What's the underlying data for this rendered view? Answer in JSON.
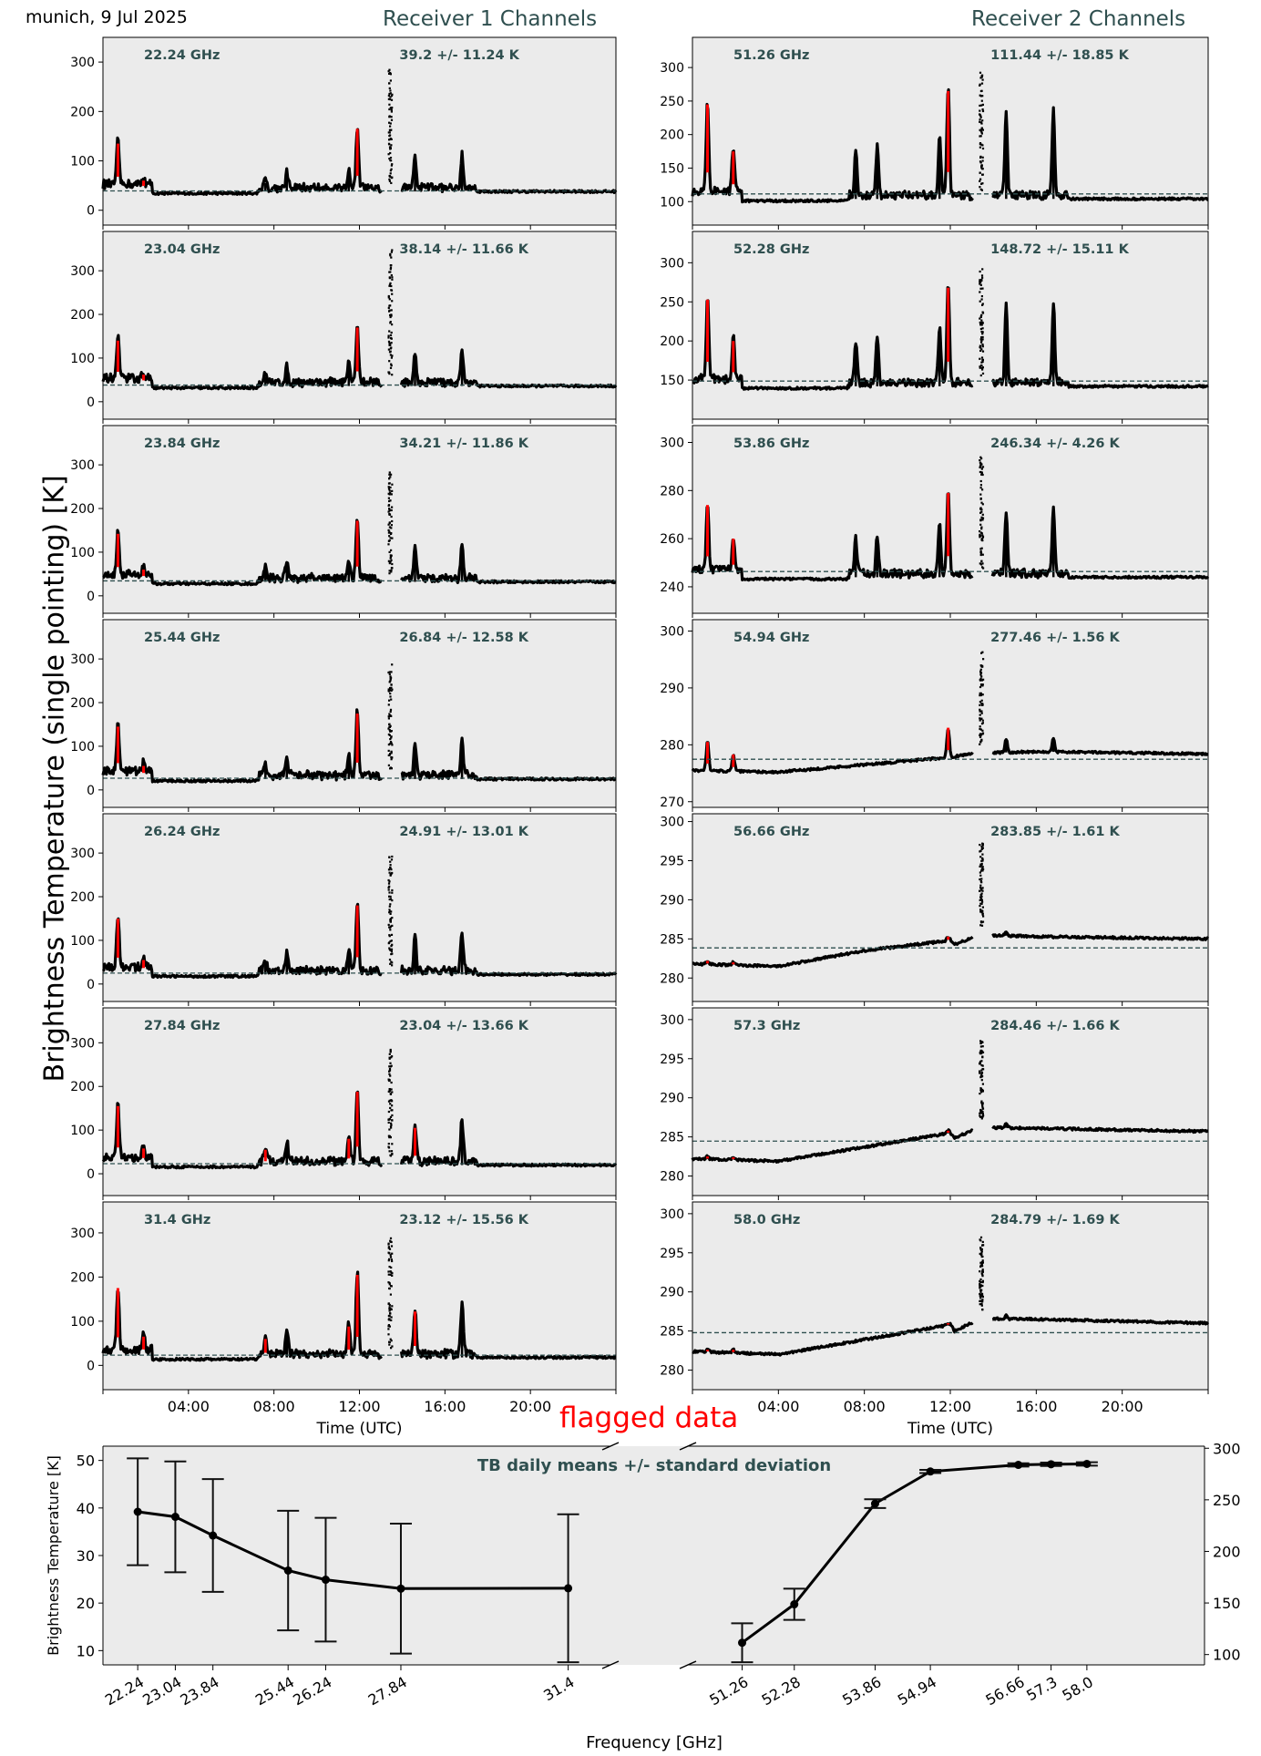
{
  "header": {
    "location_date": "munich, 9 Jul 2025",
    "receiver1_title": "Receiver 1 Channels",
    "receiver2_title": "Receiver 2 Channels",
    "shared_ylabel": "Brightness Temperature (single pointing) [K]",
    "flagged_label": "flagged data"
  },
  "colors": {
    "panel_bg": "#ebebeb",
    "annotation": "#2f4f4f",
    "data": "#000000",
    "flagged": "#ff0000",
    "mean_line": "#2f4f4f"
  },
  "chart_data": [
    {
      "type": "scatter",
      "title": "Receiver 1 Channels",
      "xlabel": "Time (UTC)",
      "ylabel": "Brightness Temperature (single pointing) [K]",
      "xlim": [
        "00:00",
        "24:00"
      ],
      "xticks": [
        "04:00",
        "08:00",
        "12:00",
        "16:00",
        "20:00"
      ],
      "panels": [
        {
          "freq_label": "22.24 GHz",
          "stats_label": "39.2 +/- 11.24 K",
          "mean": 39.2,
          "ylim": [
            -30,
            350
          ],
          "yticks": [
            0,
            100,
            200,
            300
          ],
          "baseline": 38,
          "peaks": [
            [
              0.7,
              135,
              "f"
            ],
            [
              1.9,
              60,
              "f"
            ],
            [
              7.6,
              55,
              "d"
            ],
            [
              8.6,
              68,
              "d"
            ],
            [
              11.5,
              75,
              "d"
            ],
            [
              11.9,
              165,
              "f"
            ],
            [
              13.4,
              290,
              "s"
            ],
            [
              14.6,
              100,
              "d"
            ],
            [
              16.8,
              108,
              "d"
            ]
          ]
        },
        {
          "freq_label": "23.04 GHz",
          "stats_label": "38.14 +/- 11.66 K",
          "mean": 38.14,
          "ylim": [
            -40,
            390
          ],
          "yticks": [
            0,
            100,
            200,
            300
          ],
          "baseline": 36,
          "peaks": [
            [
              0.7,
              140,
              "f"
            ],
            [
              1.9,
              62,
              "f"
            ],
            [
              7.6,
              56,
              "d"
            ],
            [
              8.6,
              70,
              "d"
            ],
            [
              11.5,
              78,
              "d"
            ],
            [
              11.9,
              170,
              "f"
            ],
            [
              13.4,
              355,
              "s"
            ],
            [
              14.6,
              102,
              "d"
            ],
            [
              16.8,
              110,
              "d"
            ]
          ]
        },
        {
          "freq_label": "23.84 GHz",
          "stats_label": "34.21 +/- 11.86 K",
          "mean": 34.21,
          "ylim": [
            -40,
            390
          ],
          "yticks": [
            0,
            100,
            200,
            300
          ],
          "baseline": 32,
          "peaks": [
            [
              0.7,
              142,
              "f"
            ],
            [
              1.9,
              60,
              "f"
            ],
            [
              7.6,
              56,
              "d"
            ],
            [
              8.6,
              70,
              "d"
            ],
            [
              11.5,
              76,
              "d"
            ],
            [
              11.9,
              172,
              "f"
            ],
            [
              13.4,
              290,
              "s"
            ],
            [
              14.6,
              100,
              "d"
            ],
            [
              16.8,
              110,
              "d"
            ]
          ]
        },
        {
          "freq_label": "25.44 GHz",
          "stats_label": "26.84 +/- 12.58 K",
          "mean": 26.84,
          "ylim": [
            -40,
            390
          ],
          "yticks": [
            0,
            100,
            200,
            300
          ],
          "baseline": 25,
          "peaks": [
            [
              0.7,
              145,
              "f"
            ],
            [
              1.9,
              55,
              "f"
            ],
            [
              7.6,
              50,
              "d"
            ],
            [
              8.6,
              68,
              "d"
            ],
            [
              11.5,
              72,
              "d"
            ],
            [
              11.9,
              175,
              "f"
            ],
            [
              13.4,
              290,
              "s"
            ],
            [
              14.6,
              100,
              "d"
            ],
            [
              16.8,
              108,
              "d"
            ]
          ]
        },
        {
          "freq_label": "26.24 GHz",
          "stats_label": "24.91 +/- 13.01 K",
          "mean": 24.91,
          "ylim": [
            -40,
            390
          ],
          "yticks": [
            0,
            100,
            200,
            300
          ],
          "baseline": 22,
          "peaks": [
            [
              0.7,
              150,
              "f"
            ],
            [
              1.9,
              55,
              "f"
            ],
            [
              7.6,
              50,
              "d"
            ],
            [
              8.6,
              66,
              "d"
            ],
            [
              11.5,
              75,
              "d"
            ],
            [
              11.9,
              180,
              "f"
            ],
            [
              13.4,
              305,
              "s"
            ],
            [
              14.6,
              100,
              "d"
            ],
            [
              16.8,
              110,
              "d"
            ]
          ]
        },
        {
          "freq_label": "27.84 GHz",
          "stats_label": "23.04 +/- 13.66 K",
          "mean": 23.04,
          "ylim": [
            -50,
            380
          ],
          "yticks": [
            0,
            100,
            200,
            300
          ],
          "baseline": 20,
          "peaks": [
            [
              0.7,
              155,
              "f"
            ],
            [
              1.9,
              58,
              "f"
            ],
            [
              7.6,
              55,
              "f"
            ],
            [
              8.6,
              68,
              "d"
            ],
            [
              11.5,
              80,
              "f"
            ],
            [
              11.9,
              188,
              "f"
            ],
            [
              13.4,
              288,
              "s"
            ],
            [
              14.6,
              105,
              "f"
            ],
            [
              16.8,
              118,
              "d"
            ]
          ]
        },
        {
          "freq_label": "31.4 GHz",
          "stats_label": "23.12 +/- 15.56 K",
          "mean": 23.12,
          "ylim": [
            -55,
            370
          ],
          "yticks": [
            0,
            100,
            200,
            300
          ],
          "baseline": 18,
          "peaks": [
            [
              0.7,
              175,
              "f"
            ],
            [
              1.9,
              65,
              "f"
            ],
            [
              7.6,
              60,
              "f"
            ],
            [
              8.6,
              80,
              "d"
            ],
            [
              11.5,
              88,
              "f"
            ],
            [
              11.9,
              205,
              "f"
            ],
            [
              13.4,
              290,
              "s"
            ],
            [
              14.6,
              122,
              "f"
            ],
            [
              16.8,
              135,
              "d"
            ]
          ]
        }
      ]
    },
    {
      "type": "scatter",
      "title": "Receiver 2 Channels",
      "xlabel": "Time (UTC)",
      "xlim": [
        "00:00",
        "24:00"
      ],
      "xticks": [
        "04:00",
        "08:00",
        "12:00",
        "16:00",
        "20:00"
      ],
      "panels": [
        {
          "freq_label": "51.26 GHz",
          "stats_label": "111.44 +/- 18.85 K",
          "mean": 111.44,
          "ylim": [
            65,
            345
          ],
          "yticks": [
            100,
            150,
            200,
            250,
            300
          ],
          "baseline": 104,
          "peaks": [
            [
              0.7,
              245,
              "f"
            ],
            [
              1.9,
              175,
              "f"
            ],
            [
              7.6,
              170,
              "d"
            ],
            [
              8.6,
              182,
              "d"
            ],
            [
              11.5,
              195,
              "d"
            ],
            [
              11.9,
              265,
              "f"
            ],
            [
              13.4,
              295,
              "s"
            ],
            [
              14.6,
              228,
              "d"
            ],
            [
              16.8,
              232,
              "d"
            ]
          ]
        },
        {
          "freq_label": "52.28 GHz",
          "stats_label": "148.72 +/- 15.11 K",
          "mean": 148.72,
          "ylim": [
            100,
            340
          ],
          "yticks": [
            150,
            200,
            250,
            300
          ],
          "baseline": 142,
          "peaks": [
            [
              0.7,
              253,
              "f"
            ],
            [
              1.9,
              200,
              "f"
            ],
            [
              7.6,
              195,
              "d"
            ],
            [
              8.6,
              205,
              "d"
            ],
            [
              11.5,
              215,
              "d"
            ],
            [
              11.9,
              268,
              "f"
            ],
            [
              13.4,
              295,
              "s"
            ],
            [
              14.6,
              240,
              "d"
            ],
            [
              16.8,
              245,
              "d"
            ]
          ]
        },
        {
          "freq_label": "53.86 GHz",
          "stats_label": "246.34 +/- 4.26 K",
          "mean": 246.34,
          "ylim": [
            229,
            307
          ],
          "yticks": [
            240,
            260,
            280,
            300
          ],
          "baseline": 244,
          "peaks": [
            [
              0.7,
              274,
              "f"
            ],
            [
              1.9,
              260,
              "f"
            ],
            [
              7.6,
              258,
              "d"
            ],
            [
              8.6,
              260,
              "d"
            ],
            [
              11.5,
              264,
              "d"
            ],
            [
              11.9,
              279,
              "f"
            ],
            [
              13.4,
              295,
              "s"
            ],
            [
              14.6,
              270,
              "d"
            ],
            [
              16.8,
              271,
              "d"
            ]
          ]
        },
        {
          "freq_label": "54.94 GHz",
          "stats_label": "277.46 +/- 1.56 K",
          "mean": 277.46,
          "ylim": [
            269,
            302
          ],
          "yticks": [
            270,
            280,
            290,
            300
          ],
          "trend": [
            [
              0,
              275.5
            ],
            [
              4,
              275.2
            ],
            [
              8,
              276.5
            ],
            [
              12,
              277.8
            ],
            [
              13,
              278.5
            ],
            [
              16,
              278.8
            ],
            [
              24,
              278.4
            ]
          ],
          "peaks": [
            [
              0.7,
              280.5,
              "f"
            ],
            [
              1.9,
              278.3,
              "f"
            ],
            [
              11.9,
              283,
              "f"
            ],
            [
              13.4,
              296.5,
              "s"
            ],
            [
              14.6,
              281,
              "d"
            ],
            [
              16.8,
              281.3,
              "d"
            ]
          ]
        },
        {
          "freq_label": "56.66 GHz",
          "stats_label": "283.85 +/- 1.61 K",
          "mean": 283.85,
          "ylim": [
            277,
            301
          ],
          "yticks": [
            280,
            285,
            290,
            295,
            300
          ],
          "trend": [
            [
              0,
              281.8
            ],
            [
              4,
              281.5
            ],
            [
              8,
              283.5
            ],
            [
              12,
              284.8
            ],
            [
              12.2,
              284.3
            ],
            [
              13.4,
              285.5
            ],
            [
              16,
              285.3
            ],
            [
              24,
              285.0
            ]
          ],
          "peaks": [
            [
              0.7,
              282.2,
              "f"
            ],
            [
              1.9,
              282,
              "f"
            ],
            [
              11.9,
              285.3,
              "f"
            ],
            [
              13.4,
              297.5,
              "s"
            ],
            [
              14.6,
              286,
              "d"
            ]
          ]
        },
        {
          "freq_label": "57.3 GHz",
          "stats_label": "284.46 +/- 1.66 K",
          "mean": 284.46,
          "ylim": [
            277.5,
            301.5
          ],
          "yticks": [
            280,
            285,
            290,
            295,
            300
          ],
          "trend": [
            [
              0,
              282.2
            ],
            [
              4,
              281.9
            ],
            [
              8,
              283.7
            ],
            [
              12,
              285.5
            ],
            [
              12.2,
              284.9
            ],
            [
              13.4,
              286.2
            ],
            [
              16,
              286.1
            ],
            [
              24,
              285.7
            ]
          ],
          "peaks": [
            [
              0.7,
              282.5,
              "f"
            ],
            [
              1.9,
              282.4,
              "f"
            ],
            [
              11.9,
              285.8,
              "f"
            ],
            [
              13.4,
              297.5,
              "s"
            ],
            [
              14.6,
              286.8,
              "d"
            ]
          ]
        },
        {
          "freq_label": "58.0 GHz",
          "stats_label": "284.79 +/- 1.69 K",
          "mean": 284.79,
          "ylim": [
            277.5,
            301.5
          ],
          "yticks": [
            280,
            285,
            290,
            295,
            300
          ],
          "trend": [
            [
              0,
              282.4
            ],
            [
              4,
              282.0
            ],
            [
              8,
              283.9
            ],
            [
              12,
              285.8
            ],
            [
              12.2,
              285.0
            ],
            [
              13.4,
              286.6
            ],
            [
              16,
              286.5
            ],
            [
              24,
              286.0
            ]
          ],
          "peaks": [
            [
              0.7,
              282.6,
              "f"
            ],
            [
              1.9,
              282.6,
              "f"
            ],
            [
              11.9,
              286.0,
              "f"
            ],
            [
              13.4,
              297.5,
              "s"
            ],
            [
              14.6,
              287.0,
              "d"
            ]
          ]
        }
      ]
    },
    {
      "type": "line",
      "title": "TB daily means +/- standard deviation",
      "xlabel": "Frequency [GHz]",
      "ylabel": "Brightness Temperature [K]",
      "left": {
        "x": [
          22.24,
          23.04,
          23.84,
          25.44,
          26.24,
          27.84,
          31.4
        ],
        "tick_labels": [
          "22.24",
          "23.04",
          "23.84",
          "25.44",
          "26.24",
          "27.84",
          "31.4"
        ],
        "y": [
          39.2,
          38.14,
          34.21,
          26.84,
          24.91,
          23.04,
          23.12
        ],
        "err": [
          11.24,
          11.66,
          11.86,
          12.58,
          13.01,
          13.66,
          15.56
        ],
        "xlim": [
          21.5,
          32.3
        ],
        "ylim": [
          7,
          53
        ],
        "yticks": [
          10,
          20,
          30,
          40,
          50
        ]
      },
      "right": {
        "x": [
          51.26,
          52.28,
          53.86,
          54.94,
          56.66,
          57.3,
          58.0
        ],
        "tick_labels": [
          "51.26",
          "52.28",
          "53.86",
          "54.94",
          "56.66",
          "57.3",
          "58.0"
        ],
        "y": [
          111.44,
          148.72,
          246.34,
          277.46,
          283.85,
          284.46,
          284.79
        ],
        "err": [
          18.85,
          15.11,
          4.26,
          1.56,
          1.61,
          1.66,
          1.69
        ],
        "xlim": [
          50.2,
          60.3
        ],
        "ylim": [
          90,
          302
        ],
        "yticks": [
          100,
          150,
          200,
          250,
          300
        ]
      }
    }
  ]
}
